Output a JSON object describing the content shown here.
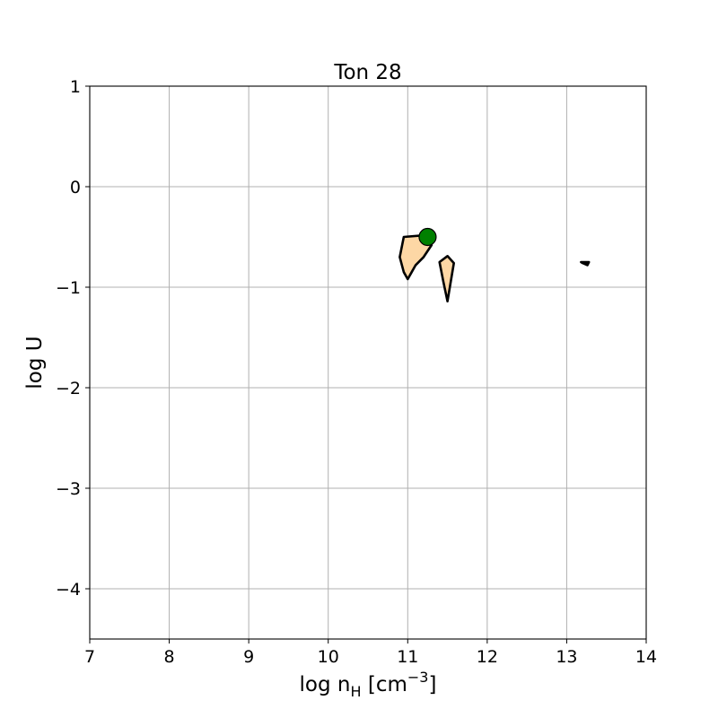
{
  "chart_data": {
    "type": "scatter",
    "title": "Ton 28",
    "xlabel": {
      "main": "log n",
      "sub": "H",
      "unit_pre": "[cm",
      "unit_sup": "−3",
      "unit_post": "]"
    },
    "ylabel": {
      "main": "log U"
    },
    "xlim": [
      7,
      14
    ],
    "ylim": [
      -4.5,
      1
    ],
    "xticks": [
      7,
      8,
      9,
      10,
      11,
      12,
      13,
      14
    ],
    "xtick_labels": [
      "7",
      "8",
      "9",
      "10",
      "11",
      "12",
      "13",
      "14"
    ],
    "yticks": [
      1,
      0,
      -1,
      -2,
      -3,
      -4
    ],
    "ytick_labels": [
      "1",
      "0",
      "−1",
      "−2",
      "−3",
      "−4"
    ],
    "grid": true,
    "contour_regions": [
      {
        "fill": "#fdd7a5",
        "edge": "#000000",
        "points": [
          [
            10.95,
            -0.5
          ],
          [
            11.25,
            -0.48
          ],
          [
            11.3,
            -0.58
          ],
          [
            11.2,
            -0.7
          ],
          [
            11.1,
            -0.78
          ],
          [
            11.05,
            -0.85
          ],
          [
            11.0,
            -0.92
          ],
          [
            10.95,
            -0.85
          ],
          [
            10.9,
            -0.7
          ]
        ]
      },
      {
        "fill": "#fdd7a5",
        "edge": "#000000",
        "points": [
          [
            11.4,
            -0.75
          ],
          [
            11.5,
            -0.69
          ],
          [
            11.58,
            -0.76
          ],
          [
            11.5,
            -1.14
          ],
          [
            11.45,
            -0.95
          ]
        ]
      },
      {
        "fill": "#000000",
        "edge": "#000000",
        "points": [
          [
            13.18,
            -0.75
          ],
          [
            13.28,
            -0.75
          ],
          [
            13.26,
            -0.78
          ],
          [
            13.2,
            -0.76
          ]
        ]
      }
    ],
    "markers": [
      {
        "x": 11.25,
        "y": -0.5,
        "color": "#008000",
        "edge": "#000000"
      }
    ]
  }
}
